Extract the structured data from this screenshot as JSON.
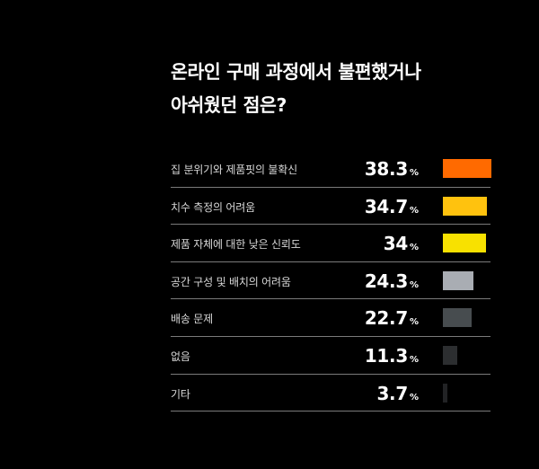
{
  "title": "온라인 구매 과정에서 불편했거나\n아쉬웠던 점은?",
  "chart_data": {
    "type": "bar",
    "orientation": "horizontal",
    "title": "온라인 구매 과정에서 불편했거나\n아쉬웠던 점은?",
    "unit": "%",
    "xlim": [
      0,
      38.3
    ],
    "categories": [
      "집 분위기와 제품핏의 불확신",
      "치수 측정의 어려움",
      "제품 자체에 대한 낮은 신뢰도",
      "공간 구성 및 배치의 어려움",
      "배송 문제",
      "없음",
      "기타"
    ],
    "values": [
      38.3,
      34.7,
      34,
      24.3,
      22.7,
      11.3,
      3.7
    ],
    "value_labels": [
      "38.3",
      "34.7",
      "34",
      "24.3",
      "22.7",
      "11.3",
      "3.7"
    ],
    "bar_colors": [
      "#ff6a00",
      "#ffc20e",
      "#f8e100",
      "#a9adb3",
      "#474c4f",
      "#2c2e30",
      "#222325"
    ],
    "grid": false,
    "legend": "none"
  }
}
